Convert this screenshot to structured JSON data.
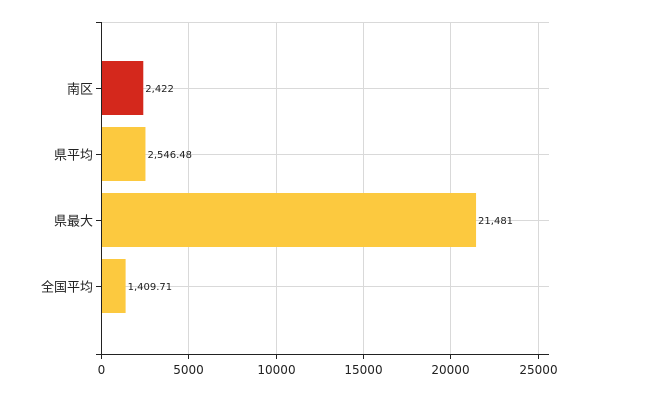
{
  "chart_data": {
    "type": "bar",
    "orientation": "horizontal",
    "categories": [
      "南区",
      "県平均",
      "県最大",
      "全国平均"
    ],
    "values": [
      2422,
      2546.48,
      21481,
      1409.71
    ],
    "value_labels": [
      "2,422",
      "2,546.48",
      "21,481",
      "1,409.71"
    ],
    "bar_colors": [
      "#d4281c",
      "#fcc93f",
      "#fcc93f",
      "#fcc93f"
    ],
    "xlim": [
      0,
      25000
    ],
    "x_ticks": [
      0,
      5000,
      10000,
      15000,
      20000,
      25000
    ],
    "x_tick_labels": [
      "0",
      "5000",
      "10000",
      "15000",
      "20000",
      "25000"
    ],
    "grid": true,
    "legend": "none",
    "title": "",
    "xlabel": "",
    "ylabel": ""
  }
}
